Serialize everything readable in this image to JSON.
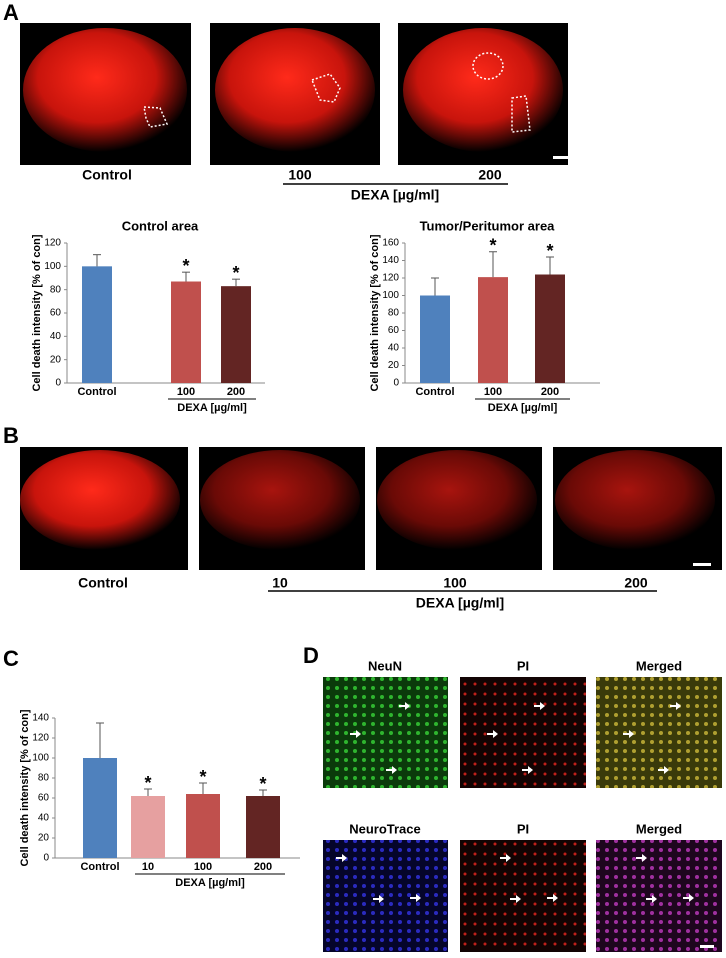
{
  "panel_labels": [
    "A",
    "B",
    "C",
    "D"
  ],
  "panel_a": {
    "captions": [
      "Control",
      "100",
      "200"
    ],
    "group_label": "DEXA [µg/ml]"
  },
  "panel_b": {
    "captions": [
      "Control",
      "10",
      "100",
      "200"
    ],
    "group_label": "DEXA [µg/ml]"
  },
  "panel_d": {
    "row_titles": [
      [
        "NeuN",
        "PI",
        "Merged"
      ],
      [
        "NeuroTrace",
        "PI",
        "Merged"
      ]
    ]
  },
  "chart_data": [
    {
      "type": "bar",
      "title": "Control area",
      "ylabel": "Cell death intensity [% of con]",
      "categories": [
        "Control",
        "100",
        "200"
      ],
      "group_label": "DEXA [µg/ml]",
      "values": [
        100,
        87,
        83
      ],
      "errors": [
        10,
        8,
        6
      ],
      "significance": [
        null,
        "*",
        "*"
      ],
      "colors": [
        "#4f81bd",
        "#c0504d",
        "#632523"
      ],
      "ylim": [
        0,
        120
      ],
      "yticks": [
        0,
        20,
        40,
        60,
        80,
        100,
        120
      ]
    },
    {
      "type": "bar",
      "title": "Tumor/Peritumor area",
      "ylabel": "Cell death intensity [% of con]",
      "categories": [
        "Control",
        "100",
        "200"
      ],
      "group_label": "DEXA [µg/ml]",
      "values": [
        100,
        121,
        124
      ],
      "errors": [
        20,
        29,
        20
      ],
      "significance": [
        null,
        "*",
        "*"
      ],
      "colors": [
        "#4f81bd",
        "#c0504d",
        "#632523"
      ],
      "ylim": [
        0,
        160
      ],
      "yticks": [
        0,
        20,
        40,
        60,
        80,
        100,
        120,
        140,
        160
      ]
    },
    {
      "type": "bar",
      "ylabel": "Cell death intensity [% of con]",
      "categories": [
        "Control",
        "10",
        "100",
        "200"
      ],
      "group_label": "DEXA [µg/ml]",
      "values": [
        100,
        62,
        64,
        62
      ],
      "errors": [
        35,
        7,
        11,
        6
      ],
      "significance": [
        null,
        "*",
        "*",
        "*"
      ],
      "colors": [
        "#4f81bd",
        "#e6a0a0",
        "#c0504d",
        "#632523"
      ],
      "ylim": [
        0,
        140
      ],
      "yticks": [
        0,
        20,
        40,
        60,
        80,
        100,
        120,
        140
      ]
    }
  ]
}
